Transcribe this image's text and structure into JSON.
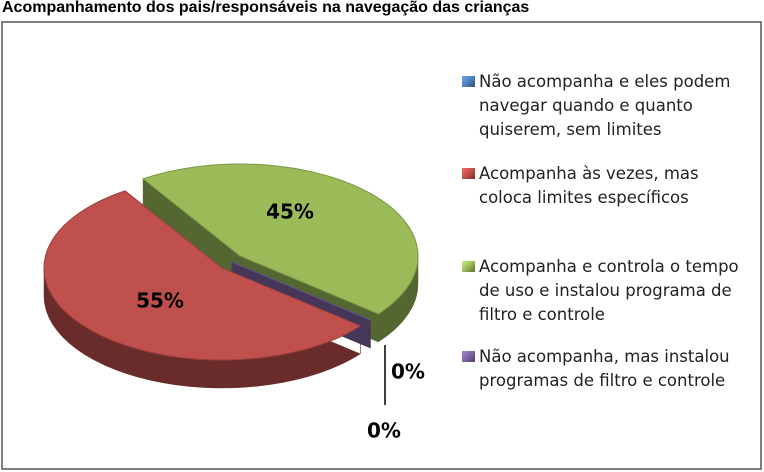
{
  "chart_data": {
    "type": "pie",
    "title": "Acompanhamento dos pais/responsáveis na navegação das crianças",
    "series": [
      {
        "name": "Não acompanha e eles podem navegar quando e quanto quiserem, sem limites",
        "color": "#4f81bd",
        "values": [
          0
        ],
        "value_labels": [
          "0%"
        ]
      },
      {
        "name": "Acompanha às vezes, mas coloca limites específicos",
        "color": "#c0504d",
        "values": [
          55
        ],
        "value_labels": [
          "55%"
        ]
      },
      {
        "name": "Acompanha e controla o tempo de uso e instalou programa de filtro e controle",
        "color": "#9bbb59",
        "values": [
          45
        ],
        "value_labels": [
          "45%"
        ]
      },
      {
        "name": "Não acompanha, mas instalou programas de filtro e controle",
        "color": "#8064a2",
        "values": [
          0
        ],
        "value_labels": [
          "0%"
        ]
      }
    ],
    "legend": "right"
  }
}
